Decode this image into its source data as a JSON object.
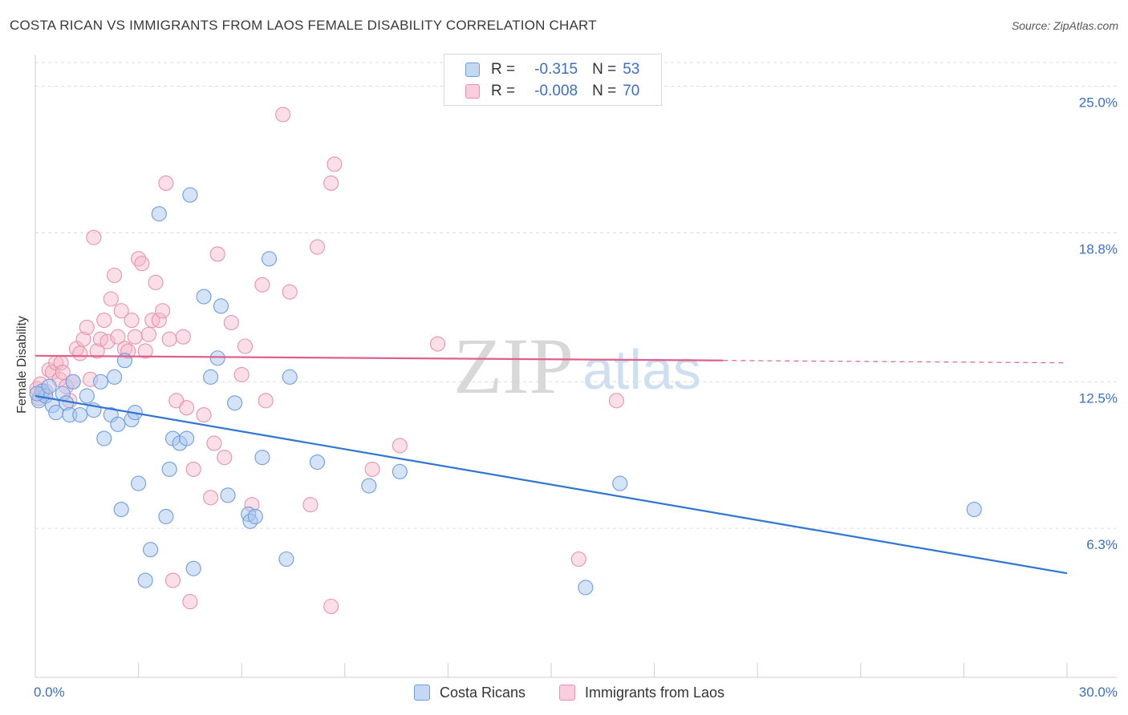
{
  "title": "COSTA RICAN VS IMMIGRANTS FROM LAOS FEMALE DISABILITY CORRELATION CHART",
  "source": "Source: ZipAtlas.com",
  "watermark": {
    "zip": "ZIP",
    "atlas": "atlas"
  },
  "colors": {
    "blue": "#2f76d2",
    "blue_fill": "#a9c8ee",
    "pink": "#e0608a",
    "pink_fill": "#f5b7ca",
    "axis_text": "#3a6fc4",
    "grid": "#dddddd"
  },
  "legend": {
    "r_label": "R =",
    "n_label": "N =",
    "series": [
      {
        "r": "-0.315",
        "n": "53"
      },
      {
        "r": "-0.008",
        "n": "70"
      }
    ]
  },
  "chart_data": {
    "type": "scatter",
    "title": "COSTA RICAN VS IMMIGRANTS FROM LAOS FEMALE DISABILITY CORRELATION CHART",
    "xlabel": "",
    "ylabel": "Female Disability",
    "xlim": [
      0,
      30
    ],
    "ylim": [
      0,
      26
    ],
    "x_tick_labels": [
      "0.0%",
      "30.0%"
    ],
    "y_ticks": [
      6.3,
      12.5,
      18.8,
      25.0
    ],
    "y_tick_labels": [
      "6.3%",
      "12.5%",
      "18.8%",
      "25.0%"
    ],
    "series": [
      {
        "name": "Costa Ricans",
        "color": "#2f76d2",
        "trend": {
          "x0": 0,
          "y0": 11.9,
          "x1": 30,
          "y1": 4.4,
          "dashed_from": null
        },
        "points": [
          [
            0.1,
            11.7
          ],
          [
            0.2,
            12.1
          ],
          [
            0.3,
            11.9
          ],
          [
            0.4,
            12.3
          ],
          [
            0.5,
            11.5
          ],
          [
            0.6,
            11.2
          ],
          [
            0.8,
            12.0
          ],
          [
            0.9,
            11.6
          ],
          [
            1.0,
            11.1
          ],
          [
            1.1,
            12.5
          ],
          [
            1.3,
            11.1
          ],
          [
            1.5,
            11.9
          ],
          [
            1.7,
            11.3
          ],
          [
            1.9,
            12.5
          ],
          [
            2.0,
            10.1
          ],
          [
            2.2,
            11.1
          ],
          [
            2.3,
            12.7
          ],
          [
            2.4,
            10.7
          ],
          [
            2.5,
            7.1
          ],
          [
            2.6,
            13.4
          ],
          [
            2.8,
            10.9
          ],
          [
            2.9,
            11.2
          ],
          [
            3.0,
            8.2
          ],
          [
            3.2,
            4.1
          ],
          [
            3.35,
            5.4
          ],
          [
            3.6,
            19.6
          ],
          [
            3.8,
            6.8
          ],
          [
            3.9,
            8.8
          ],
          [
            4.0,
            10.1
          ],
          [
            4.2,
            9.9
          ],
          [
            4.4,
            10.1
          ],
          [
            4.5,
            20.4
          ],
          [
            4.6,
            4.6
          ],
          [
            4.9,
            16.1
          ],
          [
            5.1,
            12.7
          ],
          [
            5.3,
            13.5
          ],
          [
            5.4,
            15.7
          ],
          [
            5.6,
            7.7
          ],
          [
            5.8,
            11.6
          ],
          [
            6.2,
            6.9
          ],
          [
            6.25,
            6.6
          ],
          [
            6.4,
            6.8
          ],
          [
            6.6,
            9.3
          ],
          [
            6.8,
            17.7
          ],
          [
            7.3,
            5.0
          ],
          [
            7.4,
            12.7
          ],
          [
            8.2,
            9.1
          ],
          [
            9.7,
            8.1
          ],
          [
            10.6,
            8.7
          ],
          [
            16.0,
            3.8
          ],
          [
            17.0,
            8.2
          ],
          [
            27.3,
            7.1
          ],
          [
            0.05,
            12.0
          ]
        ]
      },
      {
        "name": "Immigrants from Laos",
        "color": "#e0608a",
        "trend": {
          "x0": 0,
          "y0": 13.6,
          "x1": 30,
          "y1": 13.3,
          "dashed_from": 20.0
        },
        "points": [
          [
            0.05,
            12.2
          ],
          [
            0.1,
            11.8
          ],
          [
            0.15,
            12.4
          ],
          [
            0.2,
            12.0
          ],
          [
            0.3,
            12.1
          ],
          [
            0.4,
            13.0
          ],
          [
            0.5,
            12.9
          ],
          [
            0.6,
            13.3
          ],
          [
            0.7,
            12.6
          ],
          [
            0.75,
            13.3
          ],
          [
            0.8,
            12.9
          ],
          [
            0.9,
            12.3
          ],
          [
            1.0,
            11.7
          ],
          [
            1.1,
            12.5
          ],
          [
            1.2,
            13.9
          ],
          [
            1.3,
            13.7
          ],
          [
            1.4,
            14.3
          ],
          [
            1.5,
            14.8
          ],
          [
            1.6,
            12.6
          ],
          [
            1.7,
            18.6
          ],
          [
            1.8,
            13.8
          ],
          [
            1.9,
            14.3
          ],
          [
            2.0,
            15.1
          ],
          [
            2.1,
            14.2
          ],
          [
            2.2,
            16.0
          ],
          [
            2.3,
            17.0
          ],
          [
            2.4,
            14.4
          ],
          [
            2.5,
            15.5
          ],
          [
            2.6,
            13.9
          ],
          [
            2.7,
            13.8
          ],
          [
            2.8,
            15.1
          ],
          [
            2.9,
            14.4
          ],
          [
            3.0,
            17.7
          ],
          [
            3.1,
            17.5
          ],
          [
            3.2,
            13.8
          ],
          [
            3.3,
            14.5
          ],
          [
            3.4,
            15.1
          ],
          [
            3.5,
            16.7
          ],
          [
            3.6,
            15.1
          ],
          [
            3.7,
            15.5
          ],
          [
            3.8,
            20.9
          ],
          [
            3.9,
            14.3
          ],
          [
            4.0,
            4.1
          ],
          [
            4.1,
            11.7
          ],
          [
            4.3,
            14.4
          ],
          [
            4.4,
            11.4
          ],
          [
            4.5,
            3.2
          ],
          [
            4.6,
            8.8
          ],
          [
            4.9,
            11.1
          ],
          [
            5.1,
            7.6
          ],
          [
            5.2,
            9.9
          ],
          [
            5.3,
            17.9
          ],
          [
            5.5,
            9.3
          ],
          [
            5.7,
            15.0
          ],
          [
            6.0,
            12.8
          ],
          [
            6.1,
            14.0
          ],
          [
            6.3,
            7.3
          ],
          [
            6.6,
            16.6
          ],
          [
            6.7,
            11.7
          ],
          [
            7.2,
            23.8
          ],
          [
            7.4,
            16.3
          ],
          [
            8.0,
            7.3
          ],
          [
            8.2,
            18.2
          ],
          [
            8.6,
            20.9
          ],
          [
            8.7,
            21.7
          ],
          [
            8.6,
            3.0
          ],
          [
            9.8,
            8.8
          ],
          [
            10.6,
            9.8
          ],
          [
            11.7,
            14.1
          ],
          [
            15.8,
            5.0
          ],
          [
            16.9,
            11.7
          ]
        ]
      }
    ]
  },
  "bottom_legend": [
    "Costa Ricans",
    "Immigrants from Laos"
  ]
}
